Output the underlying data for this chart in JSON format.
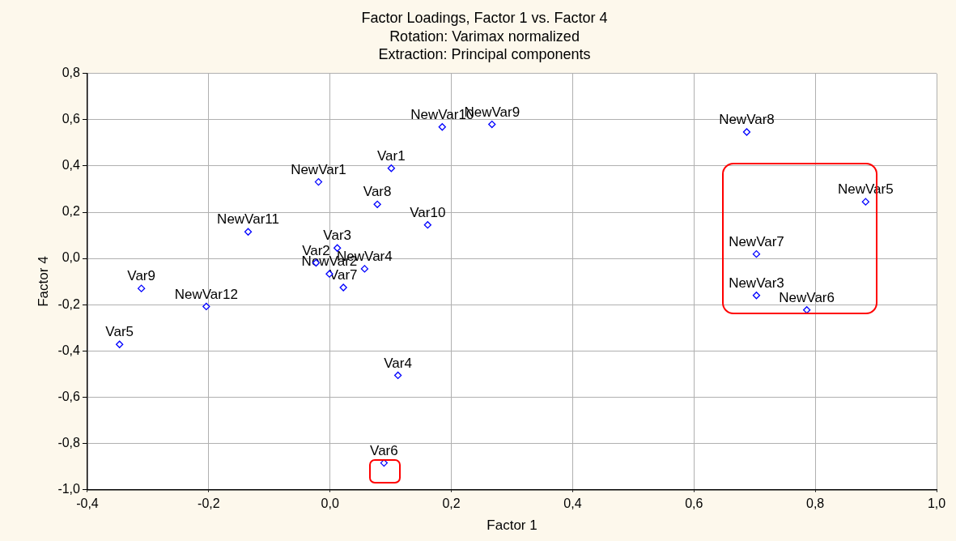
{
  "chart_data": {
    "type": "scatter",
    "title": "Factor Loadings, Factor 1 vs. Factor 4",
    "subtitle": "Rotation: Varimax normalized\nExtraction: Principal components",
    "xlabel": "Factor 1",
    "ylabel": "Factor 4",
    "series": [
      {
        "color": "#0000ff",
        "x": [
          0.267,
          0.185,
          0.687,
          0.101,
          -0.019,
          0.078,
          0.161,
          -0.135,
          0.883,
          0.703,
          0.703,
          0.786,
          -0.311,
          -0.204,
          -0.347,
          0.112,
          0.089,
          0.012,
          -0.023,
          -0.001,
          0.057,
          0.022
        ],
        "values": [
          0.58,
          0.569,
          0.547,
          0.39,
          0.331,
          0.234,
          0.145,
          0.115,
          0.245,
          0.019,
          -0.16,
          -0.223,
          -0.13,
          -0.208,
          -0.372,
          -0.506,
          -0.885,
          0.045,
          -0.019,
          -0.067,
          -0.045,
          -0.126
        ]
      }
    ],
    "annotations": [
      {
        "text": "NewVar9",
        "x": 0.267,
        "y": 0.58
      },
      {
        "text": "NewVar10",
        "x": 0.185,
        "y": 0.569
      },
      {
        "text": "NewVar8",
        "x": 0.687,
        "y": 0.547
      },
      {
        "text": "Var1",
        "x": 0.101,
        "y": 0.39
      },
      {
        "text": "NewVar1",
        "x": -0.019,
        "y": 0.331
      },
      {
        "text": "Var8",
        "x": 0.078,
        "y": 0.234
      },
      {
        "text": "Var10",
        "x": 0.161,
        "y": 0.145
      },
      {
        "text": "NewVar11",
        "x": -0.135,
        "y": 0.115
      },
      {
        "text": "NewVar5",
        "x": 0.883,
        "y": 0.245
      },
      {
        "text": "NewVar7",
        "x": 0.703,
        "y": 0.019
      },
      {
        "text": "NewVar3",
        "x": 0.703,
        "y": -0.16
      },
      {
        "text": "NewVar6",
        "x": 0.786,
        "y": -0.223
      },
      {
        "text": "Var9",
        "x": -0.311,
        "y": -0.13
      },
      {
        "text": "NewVar12",
        "x": -0.204,
        "y": -0.208
      },
      {
        "text": "Var5",
        "x": -0.347,
        "y": -0.372
      },
      {
        "text": "Var4",
        "x": 0.112,
        "y": -0.506
      },
      {
        "text": "Var6",
        "x": 0.089,
        "y": -0.885
      },
      {
        "text": "Var3",
        "x": 0.012,
        "y": 0.045
      },
      {
        "text": "Var2",
        "x": -0.023,
        "y": -0.019
      },
      {
        "text": "NewVar2",
        "x": -0.001,
        "y": -0.067
      },
      {
        "text": "NewVar4",
        "x": 0.057,
        "y": -0.045
      },
      {
        "text": "Var7",
        "x": 0.022,
        "y": -0.126
      }
    ],
    "xlim": [
      -0.4,
      1.0
    ],
    "xticks": [
      {
        "value": -0.4,
        "label": "-0,4"
      },
      {
        "value": -0.2,
        "label": "-0,2"
      },
      {
        "value": 0,
        "label": "0,0"
      },
      {
        "value": 0.2,
        "label": "0,2"
      },
      {
        "value": 0.4,
        "label": "0,4"
      },
      {
        "value": 0.6,
        "label": "0,6"
      },
      {
        "value": 0.8,
        "label": "0,8"
      },
      {
        "value": 1.0,
        "label": "1,0"
      }
    ],
    "ylim": [
      -1.0,
      0.8
    ],
    "yticks": [
      {
        "value": -1.0,
        "label": "-1,0"
      },
      {
        "value": -0.8,
        "label": "-0,8"
      },
      {
        "value": -0.6,
        "label": "-0,6"
      },
      {
        "value": -0.4,
        "label": "-0,4"
      },
      {
        "value": -0.2,
        "label": "-0,2"
      },
      {
        "value": 0,
        "label": "0,0"
      },
      {
        "value": 0.2,
        "label": "0,2"
      },
      {
        "value": 0.4,
        "label": "0,4"
      },
      {
        "value": 0.6,
        "label": "0,6"
      },
      {
        "value": 0.8,
        "label": "0,8"
      }
    ],
    "grid": true,
    "legend": false,
    "marker": "diamond"
  }
}
